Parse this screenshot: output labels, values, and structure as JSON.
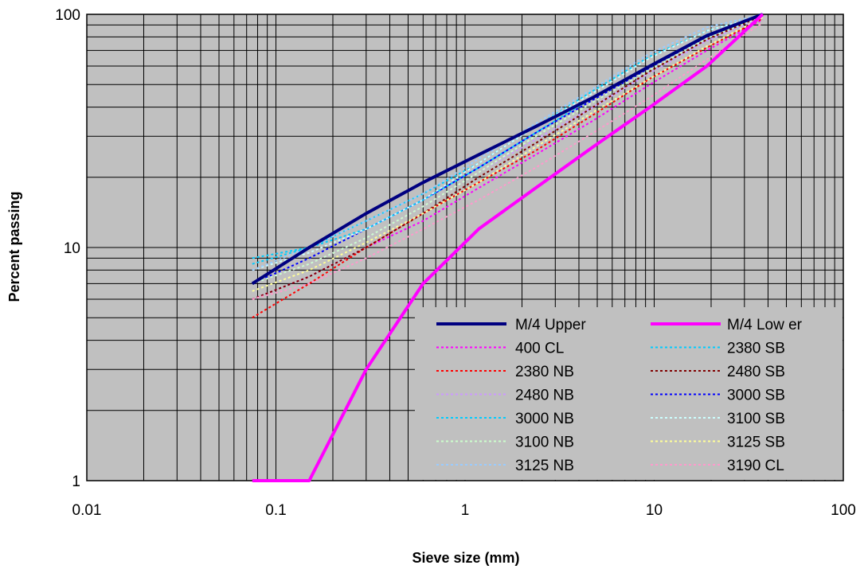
{
  "colors": {
    "plot_background": "#c0c0c0",
    "gridline": "#000000",
    "legend_background": "#c0c0c0"
  },
  "chart_data": {
    "type": "line",
    "xlabel": "Sieve size (mm)",
    "ylabel": "Percent passing",
    "x_scale": "log",
    "y_scale": "log",
    "xlim": [
      0.01,
      100
    ],
    "ylim": [
      1,
      100
    ],
    "x_ticks": [
      "0.01",
      "0.1",
      "1",
      "10",
      "100"
    ],
    "y_ticks": [
      "1",
      "10",
      "100"
    ],
    "grid": true,
    "legend_position": "bottom-right",
    "sieve_sizes": [
      0.075,
      0.15,
      0.3,
      0.6,
      1.18,
      2.36,
      4.75,
      9.5,
      19,
      37.5
    ],
    "series": [
      {
        "name": "M/4 Upper",
        "color": "#000080",
        "style": "solid",
        "width": 4,
        "values": [
          7,
          10,
          14,
          19,
          25,
          33,
          44,
          60,
          81,
          100
        ]
      },
      {
        "name": "M/4 Low er",
        "color": "#ff00ff",
        "style": "solid",
        "width": 4,
        "x": [
          0.075,
          0.15,
          0.3,
          0.6,
          1.18,
          2.36,
          4.75,
          9.5,
          19,
          37.5
        ],
        "values": [
          1,
          1,
          3,
          7,
          12,
          18,
          27,
          40,
          60,
          100
        ]
      },
      {
        "name": "400 CL",
        "color": "#ff00ff",
        "style": "dotted",
        "width": 2,
        "values": [
          6,
          7.5,
          10,
          13,
          18,
          25,
          35,
          50,
          70,
          95
        ]
      },
      {
        "name": "2380 SB",
        "color": "#00ccff",
        "style": "dotted",
        "width": 2,
        "values": [
          8.5,
          10,
          12,
          16,
          22,
          31,
          44,
          60,
          82,
          98
        ]
      },
      {
        "name": "2380 NB",
        "color": "#ff0000",
        "style": "dotted",
        "width": 2,
        "values": [
          5,
          7,
          10,
          14,
          19,
          26,
          37,
          53,
          72,
          96
        ]
      },
      {
        "name": "2480 SB",
        "color": "#800000",
        "style": "dotted",
        "width": 2,
        "values": [
          6,
          7.5,
          10,
          14,
          20,
          28,
          40,
          57,
          78,
          99
        ]
      },
      {
        "name": "2480 NB",
        "color": "#cc99ff",
        "style": "dotted",
        "width": 2,
        "values": [
          7,
          8.5,
          11,
          15,
          21,
          29,
          40,
          56,
          77,
          97
        ]
      },
      {
        "name": "3000 SB",
        "color": "#0000ff",
        "style": "dotted",
        "width": 2,
        "values": [
          7,
          9,
          12,
          16,
          22,
          31,
          43,
          59,
          80,
          100
        ]
      },
      {
        "name": "3000 NB",
        "color": "#00ccff",
        "style": "dotted",
        "width": 2,
        "values": [
          9,
          10,
          13,
          17,
          23,
          33,
          47,
          66,
          85,
          99
        ]
      },
      {
        "name": "3100 SB",
        "color": "#ccffff",
        "style": "dotted",
        "width": 2,
        "values": [
          8,
          9.5,
          12,
          16,
          23,
          33,
          46,
          65,
          85,
          99
        ]
      },
      {
        "name": "3100 NB",
        "color": "#ccffcc",
        "style": "dotted",
        "width": 2,
        "values": [
          7,
          8.5,
          11,
          15,
          21,
          30,
          42,
          58,
          79,
          98
        ]
      },
      {
        "name": "3125 SB",
        "color": "#ffff99",
        "style": "dotted",
        "width": 2,
        "values": [
          6.5,
          8,
          10.5,
          14,
          19,
          27,
          38,
          53,
          73,
          97
        ]
      },
      {
        "name": "3125 NB",
        "color": "#99ccff",
        "style": "dotted",
        "width": 2,
        "values": [
          8,
          10,
          13,
          17,
          24,
          34,
          48,
          68,
          88,
          100
        ]
      },
      {
        "name": "3190 CL",
        "color": "#ff99cc",
        "style": "dotted",
        "width": 2,
        "values": [
          6,
          7,
          9,
          12,
          16,
          22,
          31,
          44,
          64,
          92
        ]
      }
    ]
  }
}
